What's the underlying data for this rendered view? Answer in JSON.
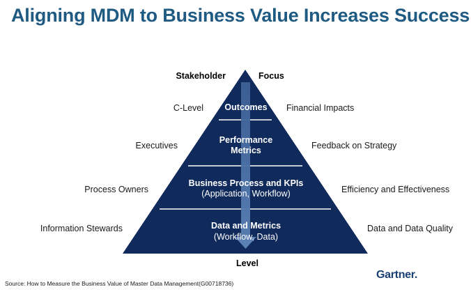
{
  "title": "Aligning MDM to Business Value Increases Success",
  "headers": {
    "stakeholder": "Stakeholder",
    "focus": "Focus",
    "level": "Level"
  },
  "tiers": [
    {
      "title": "Outcomes",
      "subtitle": "",
      "stakeholder": "C-Level",
      "focus": "Financial Impacts"
    },
    {
      "title": "Performance",
      "title_line2": "Metrics",
      "subtitle": "",
      "stakeholder": "Executives",
      "focus": "Feedback on Strategy"
    },
    {
      "title": "Business Process and KPIs",
      "subtitle": "(Application, Workflow)",
      "stakeholder": "Process Owners",
      "focus": "Efficiency and Effectiveness"
    },
    {
      "title": "Data and Metrics",
      "subtitle": "(Workflow, Data)",
      "stakeholder": "Information Stewards",
      "focus": "Data and Data Quality"
    }
  ],
  "colors": {
    "title": "#1e5a82",
    "pyramid": "#102a5c",
    "arrow": "#4a6fa0",
    "divider": "#ffffff",
    "logo": "#1a3f73"
  },
  "source": "Source: How to Measure the Business Value of Master Data Management(G00718736)",
  "logo": "Gartner"
}
